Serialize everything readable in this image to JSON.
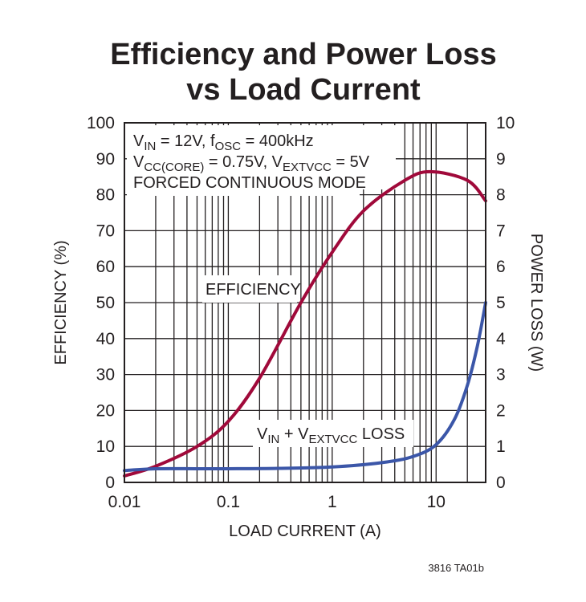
{
  "chart_data": {
    "type": "line",
    "title_lines": [
      "Efficiency and Power Loss",
      "vs Load Current"
    ],
    "xlabel": "LOAD CURRENT (A)",
    "ylabel": "EFFICIENCY (%)",
    "y2label": "POWER LOSS (W)",
    "x_scale": "log",
    "xlim": [
      0.01,
      30
    ],
    "ylim": [
      0,
      100
    ],
    "y2lim": [
      0,
      10
    ],
    "x_ticks": [
      "0.01",
      "0.1",
      "1",
      "10"
    ],
    "x_tick_values": [
      0.01,
      0.1,
      1,
      10
    ],
    "y_ticks": [
      "0",
      "10",
      "20",
      "30",
      "40",
      "50",
      "60",
      "70",
      "80",
      "90",
      "100"
    ],
    "y2_ticks": [
      "0",
      "1",
      "2",
      "3",
      "4",
      "5",
      "6",
      "7",
      "8",
      "9",
      "10"
    ],
    "grid": true,
    "annotations": {
      "line1": {
        "a": "V",
        "a_sub": "IN",
        "b": " = 12V, f",
        "b_sub": "OSC",
        "c": " = 400kHz"
      },
      "line2": {
        "a": "V",
        "a_sub": "CC(CORE)",
        "b": " = 0.75V, V",
        "b_sub": "EXTVCC",
        "c": " = 5V"
      },
      "line3": "FORCED CONTINUOUS MODE",
      "efficiency_label": "EFFICIENCY",
      "loss_label": {
        "a": "V",
        "a_sub": "IN",
        "b": " + V",
        "b_sub": "EXTVCC",
        "c": " LOSS"
      }
    },
    "footnote": "3816 TA01b",
    "series": [
      {
        "name": "EFFICIENCY",
        "axis": "left",
        "color": "#a0093a",
        "x": [
          0.01,
          0.02,
          0.05,
          0.1,
          0.2,
          0.5,
          1,
          2,
          5,
          8.8,
          20,
          30
        ],
        "y": [
          1.8,
          4.5,
          10,
          17,
          29,
          50,
          64,
          75.5,
          84,
          86.4,
          84,
          78.3
        ]
      },
      {
        "name": "VIN + VEXTVCC LOSS",
        "axis": "right",
        "color": "#3b56a8",
        "x": [
          0.01,
          0.02,
          0.05,
          0.1,
          0.3,
          1,
          3,
          6,
          10,
          15,
          20,
          25,
          30
        ],
        "y": [
          0.33,
          0.38,
          0.38,
          0.38,
          0.39,
          0.43,
          0.55,
          0.72,
          1.05,
          1.75,
          2.7,
          3.8,
          5.0
        ]
      }
    ]
  }
}
